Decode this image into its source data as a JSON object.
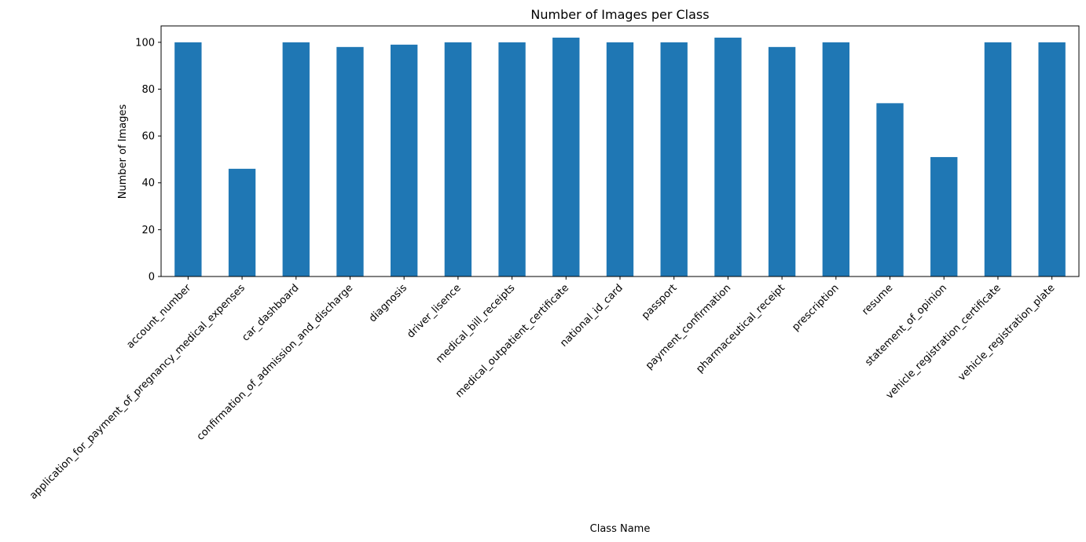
{
  "chart_data": {
    "type": "bar",
    "title": "Number of Images per Class",
    "xlabel": "Class Name",
    "ylabel": "Number of Images",
    "ylim": [
      0,
      107
    ],
    "yticks": [
      0,
      20,
      40,
      60,
      80,
      100
    ],
    "grid": false,
    "bar_color": "#1f77b4",
    "categories": [
      "account_number",
      "application_for_payment_of_pregnancy_medical_expenses",
      "car_dashboard",
      "confirmation_of_admission_and_discharge",
      "diagnosis",
      "driver_lisence",
      "medical_bill_receipts",
      "medical_outpatient_certificate",
      "national_id_card",
      "passport",
      "payment_confirmation",
      "pharmaceutical_receipt",
      "prescription",
      "resume",
      "statement_of_opinion",
      "vehicle_registration_certificate",
      "vehicle_registration_plate"
    ],
    "values": [
      100,
      46,
      100,
      98,
      99,
      100,
      100,
      102,
      100,
      100,
      102,
      98,
      100,
      74,
      51,
      100,
      100
    ]
  }
}
